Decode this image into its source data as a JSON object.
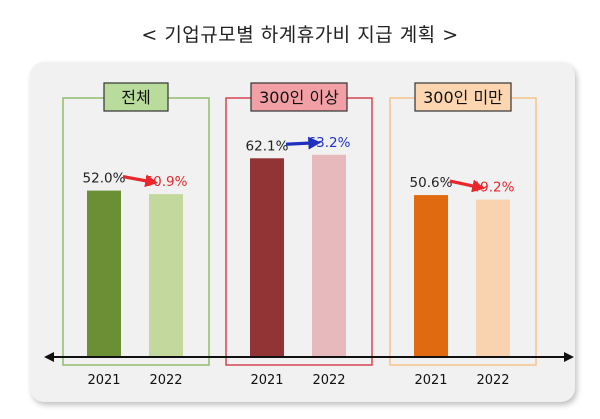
{
  "title": "< 기업규모별 하계휴가비 지급 계획 >",
  "chart_data": {
    "type": "bar",
    "unit": "%",
    "ylim": [
      0,
      75
    ],
    "groups": [
      {
        "label": "전체",
        "label_bg": "#b9dc9c",
        "frame_color": "#8fbe6a",
        "bars": [
          {
            "x": "2021",
            "value": 52.0,
            "label": "52.0%",
            "color": "#6a8f35",
            "label_color": "#222222"
          },
          {
            "x": "2022",
            "value": 50.9,
            "label": "50.9%",
            "color": "#c2d89c",
            "label_color": "#e8262c"
          }
        ],
        "arrow_color": "#e8262c"
      },
      {
        "label": "300인 이상",
        "label_bg": "#f2a0a6",
        "frame_color": "#d64550",
        "bars": [
          {
            "x": "2021",
            "value": 62.1,
            "label": "62.1%",
            "color": "#923436",
            "label_color": "#222222"
          },
          {
            "x": "2022",
            "value": 63.2,
            "label": "63.2%",
            "color": "#e7b9bc",
            "label_color": "#2234c8"
          }
        ],
        "arrow_color": "#1f2fbf"
      },
      {
        "label": "300인 미만",
        "label_bg": "#fbd6b0",
        "frame_color": "#f6c48c",
        "bars": [
          {
            "x": "2021",
            "value": 50.6,
            "label": "50.6%",
            "color": "#e06a10",
            "label_color": "#222222"
          },
          {
            "x": "2022",
            "value": 49.2,
            "label": "49.2%",
            "color": "#f9d2b0",
            "label_color": "#e8262c"
          }
        ],
        "arrow_color": "#e8262c"
      }
    ]
  }
}
